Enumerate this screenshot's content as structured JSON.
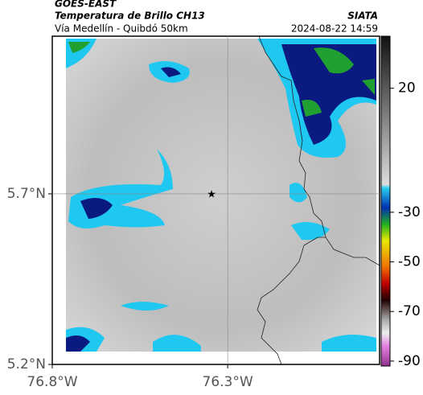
{
  "header": {
    "source": "GOES-EAST",
    "title": "Temperatura de Brillo CH13",
    "agency": "SIATA",
    "subtitle": "Vía Medellín - Quibdó 50km",
    "datetime": "2024-08-22 14:59"
  },
  "map": {
    "lonlim": [
      -76.8,
      -75.867
    ],
    "latlim": [
      5.2,
      6.162
    ],
    "xticks": [
      {
        "value": -76.8,
        "label": "76.8°W"
      },
      {
        "value": -76.3,
        "label": "76.3°W"
      }
    ],
    "yticks": [
      {
        "value": 5.7,
        "label": "5.7°N"
      },
      {
        "value": 5.2,
        "label": "5.2°N"
      }
    ],
    "marker": {
      "lon": -76.346,
      "lat": 5.7
    }
  },
  "colorbar": {
    "limits": [
      -92,
      41
    ],
    "ticks": [
      20,
      -30,
      -50,
      -70,
      -90
    ]
  }
}
